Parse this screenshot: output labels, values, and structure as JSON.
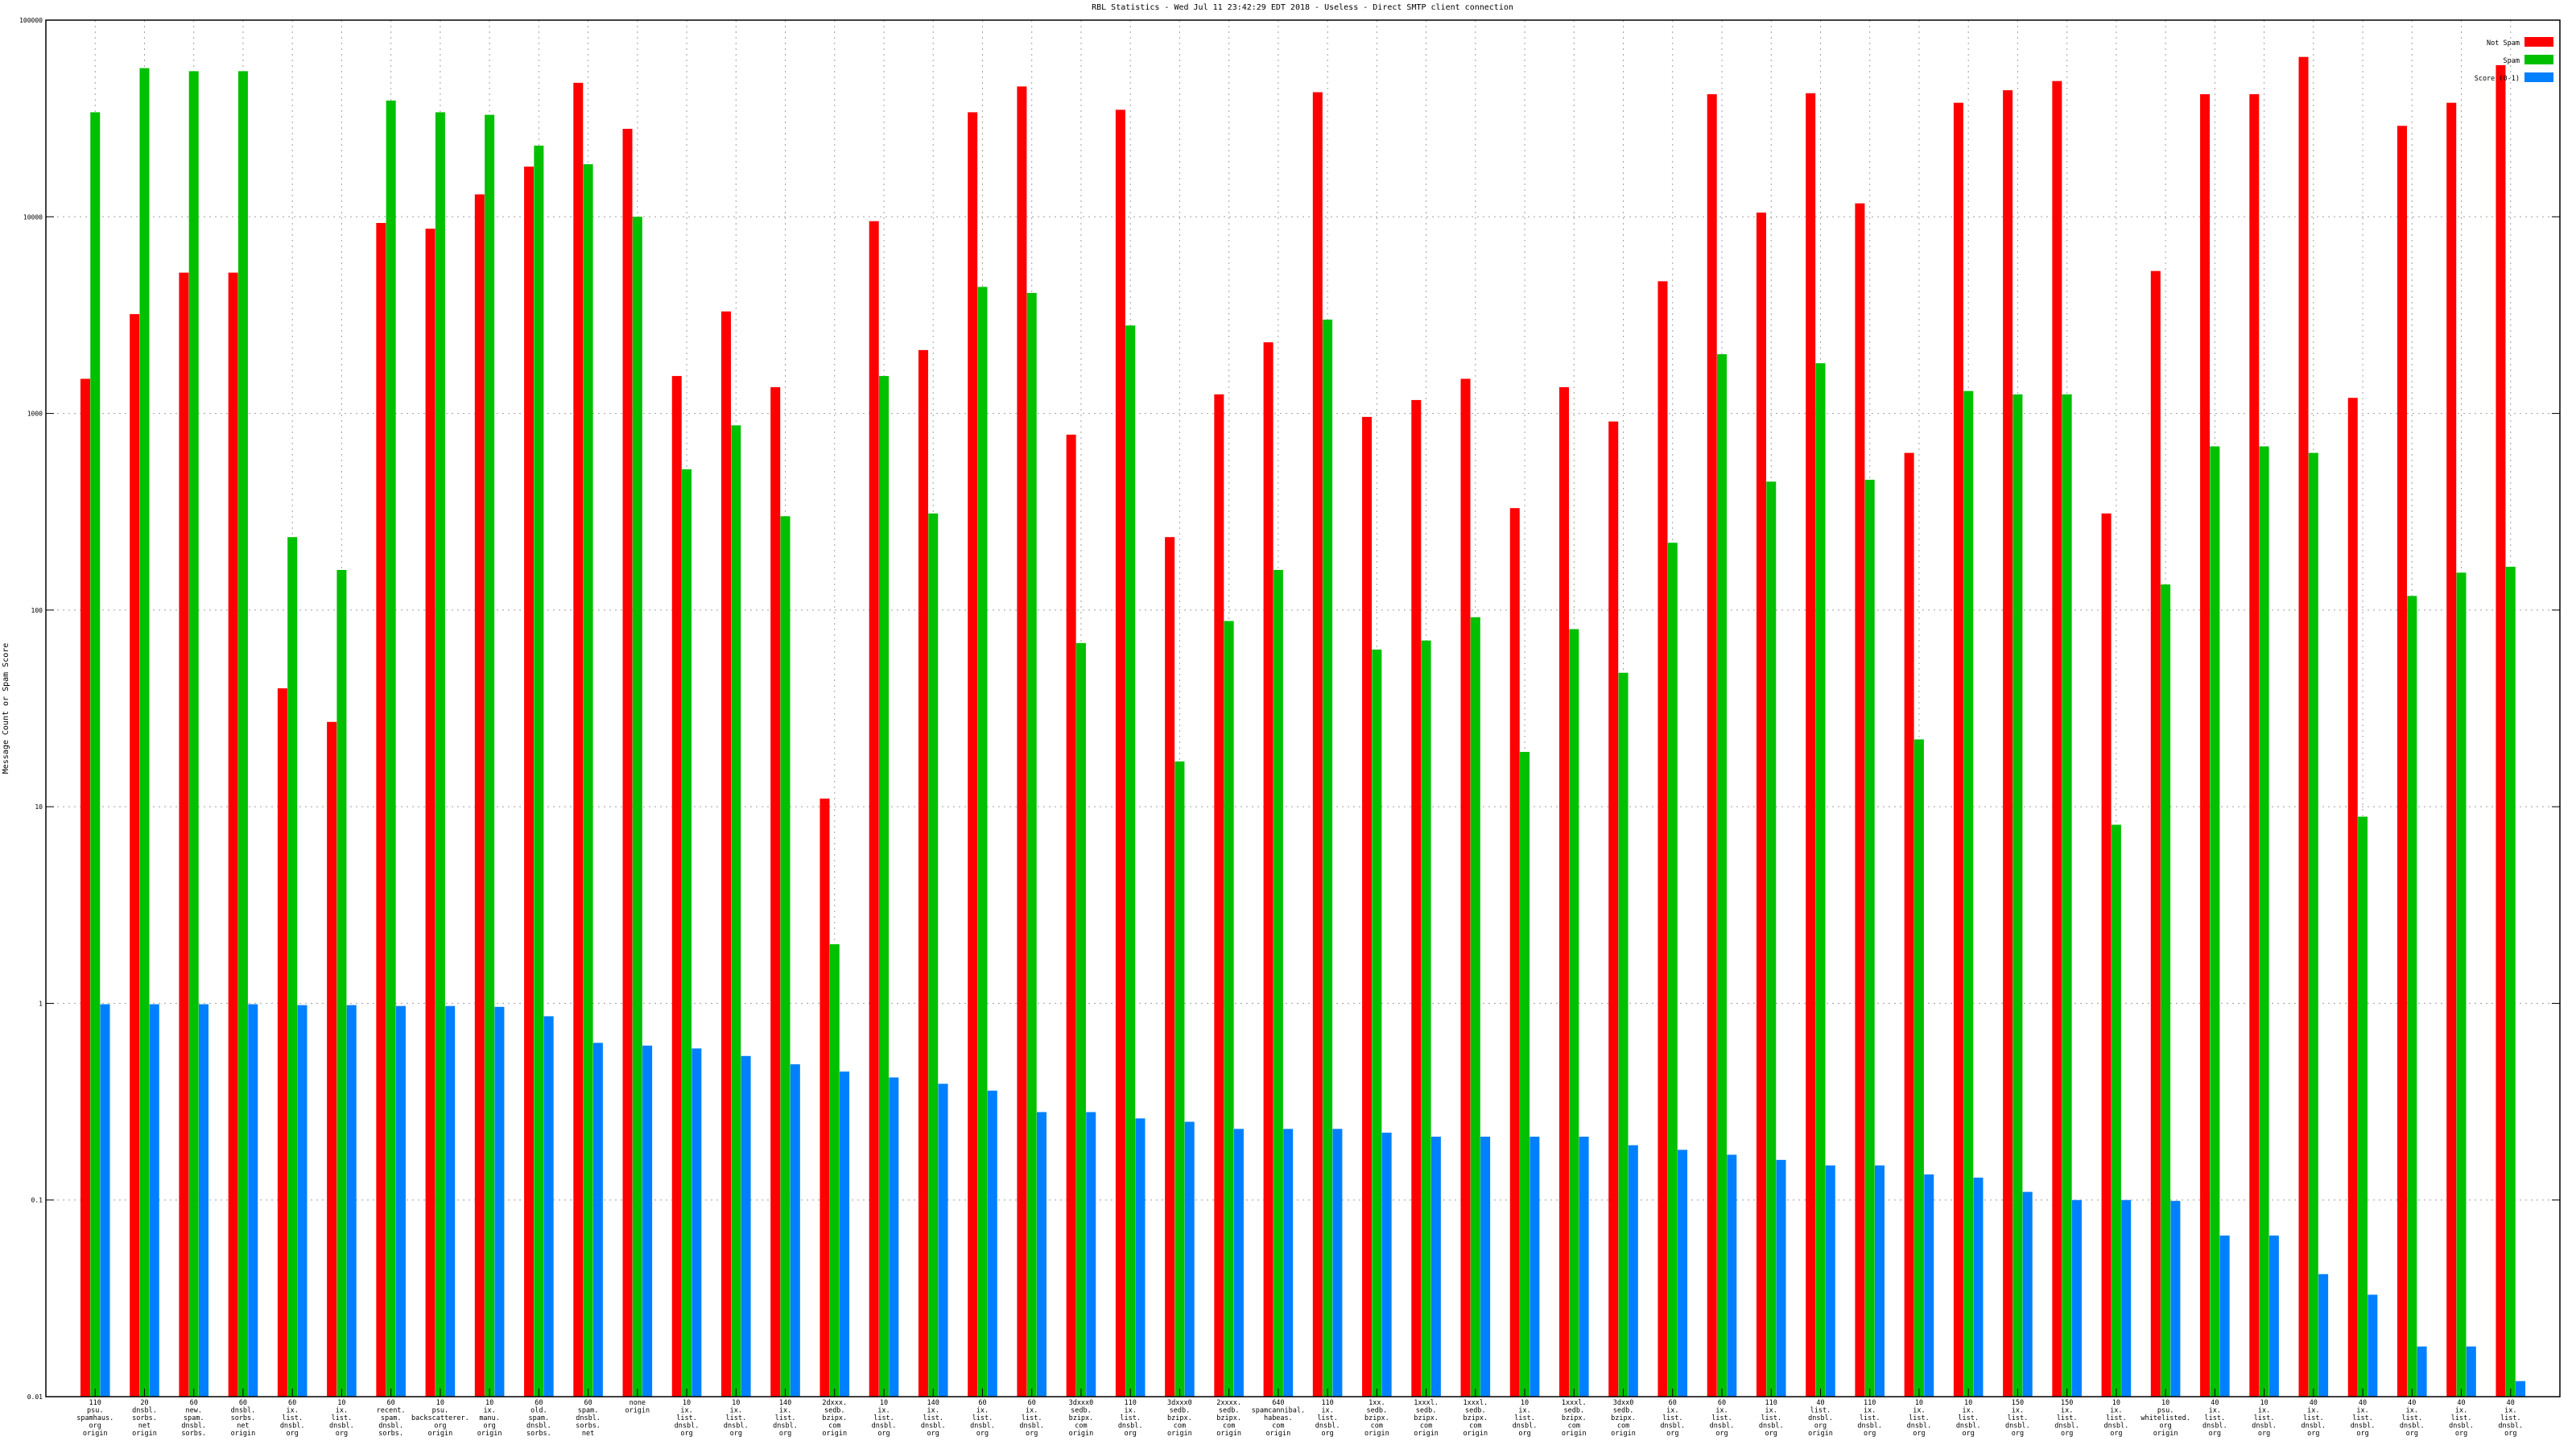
{
  "chart_data": {
    "type": "bar",
    "title": "RBL Statistics - Wed Jul 11 23:42:29 EDT 2018 - Useless - Direct SMTP client connection",
    "y_label": "Message Count or Spam Score",
    "log_scale": true,
    "grid": true,
    "legend": "top-right",
    "ylim": [
      0.01,
      100000
    ],
    "yticks": [
      0.01,
      0.1,
      1,
      10,
      100,
      1000,
      10000,
      100000
    ],
    "categories": [
      "110\npsu.\nspamhaus.\norg\norigin",
      "20\ndnsbl.\nsorbs.\nnet\norigin",
      "60\nnew.\nspam.\ndnsbl.\nsorbs.",
      "60\ndnsbl.\nsorbs.\nnet\norigin",
      "60\nix.\nlist.\ndnsbl.\norg",
      "10\nix.\nlist.\ndnsbl.\norg",
      "60\nrecent.\nspam.\ndnsbl.\nsorbs.",
      "10\npsu.\nbackscatterer.\norg\norigin",
      "10\nix.\nmanu.\norg\norigin",
      "60\nold.\nspam.\ndnsbl.\nsorbs.",
      "60\nspam.\ndnsbl.\nsorbs.\nnet",
      "none\norigin",
      "10\nix.\nlist.\ndnsbl.\norg",
      "10\nix.\nlist.\ndnsbl.\norg",
      "140\nix.\nlist.\ndnsbl.\norg",
      "2dxxx.\nsedb.\nbzipx.\ncom\norigin",
      "10\nix.\nlist.\ndnsbl.\norg",
      "140\nix.\nlist.\ndnsbl.\norg",
      "60\nix.\nlist.\ndnsbl.\norg",
      "60\nix.\nlist.\ndnsbl.\norg",
      "3dxxx0\nsedb.\nbzipx.\ncom\norigin",
      "110\nix.\nlist.\ndnsbl.\norg",
      "3dxxx0\nsedb.\nbzipx.\ncom\norigin",
      "2xxxx.\nsedb.\nbzipx.\ncom\norigin",
      "640\nspamcannibal.\nhabeas.\ncom\norigin",
      "110\nix.\nlist.\ndnsbl.\norg",
      "1xx.\nsedb.\nbzipx.\ncom\norigin",
      "1xxxl.\nsedb.\nbzipx.\ncom\norigin",
      "1xxxl.\nsedb.\nbzipx.\ncom\norigin",
      "10\nix.\nlist.\ndnsbl.\norg",
      "1xxxl.\nsedb.\nbzipx.\ncom\norigin",
      "3dxx0\nsedb.\nbzipx.\ncom\norigin",
      "60\nix.\nlist.\ndnsbl.\norg",
      "60\nix.\nlist.\ndnsbl.\norg",
      "110\nix.\nlist.\ndnsbl.\norg",
      "40\nlist.\ndnsbl.\norg\norigin",
      "110\nix.\nlist.\ndnsbl.\norg",
      "10\nix.\nlist.\ndnsbl.\norg",
      "10\nix.\nlist.\ndnsbl.\norg",
      "150\nix.\nlist.\ndnsbl.\norg",
      "150\nix.\nlist.\ndnsbl.\norg",
      "10\nix.\nlist.\ndnsbl.\norg",
      "10\npsu.\nwhitelisted.\norg\norigin",
      "40\nix.\nlist.\ndnsbl.\norg",
      "10\nix.\nlist.\ndnsbl.\norg",
      "40\nix.\nlist.\ndnsbl.\norg",
      "40\nix.\nlist.\ndnsbl.\norg",
      "40\nix.\nlist.\ndnsbl.\norg",
      "40\nix.\nlist.\ndnsbl.\norg",
      "40\nix.\nlist.\ndnsbl.\norg"
    ],
    "series": [
      {
        "name": "Not Spam",
        "color": "#ff0000",
        "values": [
          1500,
          3200,
          5200,
          5200,
          40,
          27,
          9300,
          8700,
          13000,
          18000,
          48000,
          28000,
          1550,
          3300,
          1360,
          11,
          9500,
          2100,
          34000,
          46000,
          780,
          35000,
          235,
          1250,
          2300,
          43000,
          960,
          1170,
          1500,
          330,
          1360,
          910,
          4700,
          42000,
          10500,
          42500,
          11700,
          630,
          38000,
          44000,
          49000,
          310,
          5300,
          42000,
          42000,
          65000,
          1200,
          29000,
          38000,
          59000
        ]
      },
      {
        "name": "Spam",
        "color": "#00c000",
        "values": [
          34000,
          57000,
          55000,
          55000,
          235,
          160,
          39000,
          34000,
          33000,
          23000,
          18500,
          10000,
          520,
          870,
          300,
          2,
          1550,
          310,
          4400,
          4100,
          68,
          2800,
          17,
          88,
          160,
          3000,
          63,
          70,
          92,
          19,
          80,
          48,
          220,
          2000,
          450,
          1800,
          460,
          22,
          1300,
          1250,
          1250,
          8.1,
          135,
          680,
          680,
          630,
          8.9,
          118,
          155,
          166
        ]
      },
      {
        "name": "Score (0-1)",
        "color": "#0080ff",
        "values": [
          0.99,
          0.99,
          0.99,
          0.99,
          0.98,
          0.98,
          0.97,
          0.97,
          0.96,
          0.86,
          0.63,
          0.61,
          0.59,
          0.54,
          0.49,
          0.45,
          0.42,
          0.39,
          0.36,
          0.28,
          0.28,
          0.26,
          0.25,
          0.23,
          0.23,
          0.23,
          0.22,
          0.21,
          0.21,
          0.21,
          0.21,
          0.19,
          0.18,
          0.17,
          0.16,
          0.15,
          0.15,
          0.135,
          0.13,
          0.11,
          0.1,
          0.1,
          0.099,
          0.066,
          0.066,
          0.042,
          0.033,
          0.018,
          0.018,
          0.012
        ]
      }
    ]
  }
}
